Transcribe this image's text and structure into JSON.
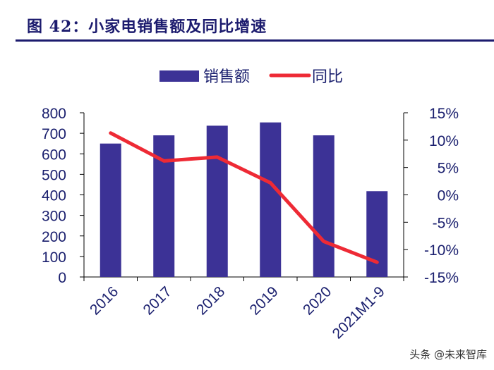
{
  "page": {
    "title": "图 42：小家电销售额及同比增速",
    "watermark": "头条 @未来智库"
  },
  "colors": {
    "bar": "#3c3296",
    "line": "#ee2a35",
    "text": "#1a1f6e",
    "title": "#1c1b6e"
  },
  "chart_data": {
    "type": "bar",
    "title": "小家电销售额及同比增速",
    "categories": [
      "2016",
      "2017",
      "2018",
      "2019",
      "2020",
      "2021M1-9"
    ],
    "series": [
      {
        "name": "销售额",
        "type": "bar",
        "axis": "left",
        "values": [
          650,
          690,
          737,
          753,
          690,
          418
        ]
      },
      {
        "name": "同比",
        "type": "line",
        "axis": "right",
        "unit": "%",
        "values": [
          11.3,
          6.2,
          6.9,
          2.2,
          -8.5,
          -12.3
        ]
      }
    ],
    "y_left": {
      "min": 0,
      "max": 800,
      "ticks": [
        "800",
        "700",
        "600",
        "500",
        "400",
        "300",
        "200",
        "100",
        "0"
      ]
    },
    "y_right": {
      "min": -15,
      "max": 15,
      "ticks": [
        "15%",
        "10%",
        "5%",
        "0%",
        "-5%",
        "-10%",
        "-15%"
      ]
    },
    "legend": {
      "position": "top",
      "items": [
        "销售额",
        "同比"
      ]
    },
    "grid": false
  }
}
